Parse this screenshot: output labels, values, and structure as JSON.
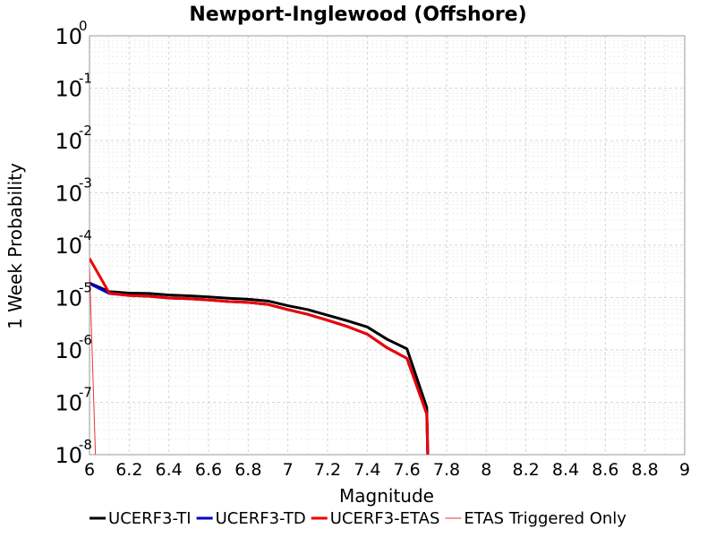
{
  "chart_data": {
    "type": "line",
    "title": "Newport-Inglewood (Offshore)",
    "xlabel": "Magnitude",
    "ylabel": "1 Week Probability",
    "xlim": [
      6,
      9
    ],
    "ylim": [
      1e-08,
      1
    ],
    "yscale": "log",
    "grid": true,
    "legend_position": "bottom",
    "x_ticks": [
      "6",
      "6.2",
      "6.4",
      "6.6",
      "6.8",
      "7",
      "7.2",
      "7.4",
      "7.6",
      "7.8",
      "8",
      "8.2",
      "8.4",
      "8.6",
      "8.8",
      "9"
    ],
    "y_ticks": [
      {
        "base": "10",
        "exp": "0",
        "value": 1
      },
      {
        "base": "10",
        "exp": "-1",
        "value": 0.1
      },
      {
        "base": "10",
        "exp": "-2",
        "value": 0.01
      },
      {
        "base": "10",
        "exp": "-3",
        "value": 0.001
      },
      {
        "base": "10",
        "exp": "-4",
        "value": 0.0001
      },
      {
        "base": "10",
        "exp": "-5",
        "value": 1e-05
      },
      {
        "base": "10",
        "exp": "-6",
        "value": 1e-06
      },
      {
        "base": "10",
        "exp": "-7",
        "value": 1e-07
      },
      {
        "base": "10",
        "exp": "-8",
        "value": 1e-08
      }
    ],
    "series": [
      {
        "name": "UCERF3-TI",
        "color": "#000000",
        "width": 3,
        "points": [
          [
            6.0,
            1.9e-05
          ],
          [
            6.1,
            1.3e-05
          ],
          [
            6.2,
            1.22e-05
          ],
          [
            6.3,
            1.2e-05
          ],
          [
            6.4,
            1.12e-05
          ],
          [
            6.5,
            1.08e-05
          ],
          [
            6.6,
            1.03e-05
          ],
          [
            6.7,
            9.7e-06
          ],
          [
            6.8,
            9.3e-06
          ],
          [
            6.9,
            8.6e-06
          ],
          [
            7.0,
            7e-06
          ],
          [
            7.1,
            5.9e-06
          ],
          [
            7.2,
            4.6e-06
          ],
          [
            7.3,
            3.6e-06
          ],
          [
            7.4,
            2.75e-06
          ],
          [
            7.5,
            1.6e-06
          ],
          [
            7.6,
            1.05e-06
          ],
          [
            7.7,
            8e-08
          ],
          [
            7.705,
            1e-08
          ]
        ]
      },
      {
        "name": "UCERF3-TD",
        "color": "#0000cc",
        "width": 3,
        "points": [
          [
            6.0,
            1.85e-05
          ],
          [
            6.1,
            1.2e-05
          ],
          [
            6.2,
            1.1e-05
          ],
          [
            6.3,
            1.06e-05
          ],
          [
            6.4,
            9.8e-06
          ],
          [
            6.5,
            9.5e-06
          ],
          [
            6.6,
            9e-06
          ],
          [
            6.7,
            8.4e-06
          ],
          [
            6.8,
            8.1e-06
          ],
          [
            6.9,
            7.4e-06
          ],
          [
            7.0,
            5.9e-06
          ],
          [
            7.1,
            4.8e-06
          ],
          [
            7.2,
            3.7e-06
          ],
          [
            7.3,
            2.8e-06
          ],
          [
            7.4,
            2e-06
          ],
          [
            7.5,
            1.1e-06
          ],
          [
            7.6,
            6.9e-07
          ],
          [
            7.7,
            6e-08
          ],
          [
            7.705,
            1e-08
          ]
        ]
      },
      {
        "name": "UCERF3-ETAS",
        "color": "#ee0000",
        "width": 3,
        "points": [
          [
            6.0,
            5.6e-05
          ],
          [
            6.1,
            1.22e-05
          ],
          [
            6.2,
            1.1e-05
          ],
          [
            6.3,
            1.06e-05
          ],
          [
            6.4,
            9.8e-06
          ],
          [
            6.5,
            9.5e-06
          ],
          [
            6.6,
            9e-06
          ],
          [
            6.7,
            8.4e-06
          ],
          [
            6.8,
            8.1e-06
          ],
          [
            6.9,
            7.4e-06
          ],
          [
            7.0,
            5.9e-06
          ],
          [
            7.1,
            4.8e-06
          ],
          [
            7.2,
            3.7e-06
          ],
          [
            7.3,
            2.8e-06
          ],
          [
            7.4,
            2e-06
          ],
          [
            7.5,
            1.1e-06
          ],
          [
            7.6,
            6.9e-07
          ],
          [
            7.7,
            6e-08
          ],
          [
            7.705,
            1e-08
          ]
        ]
      },
      {
        "name": "ETAS Triggered Only",
        "color": "#ee3333",
        "width": 1,
        "points": [
          [
            6.0,
            3.6e-05
          ],
          [
            6.03,
            1e-08
          ]
        ]
      }
    ]
  }
}
